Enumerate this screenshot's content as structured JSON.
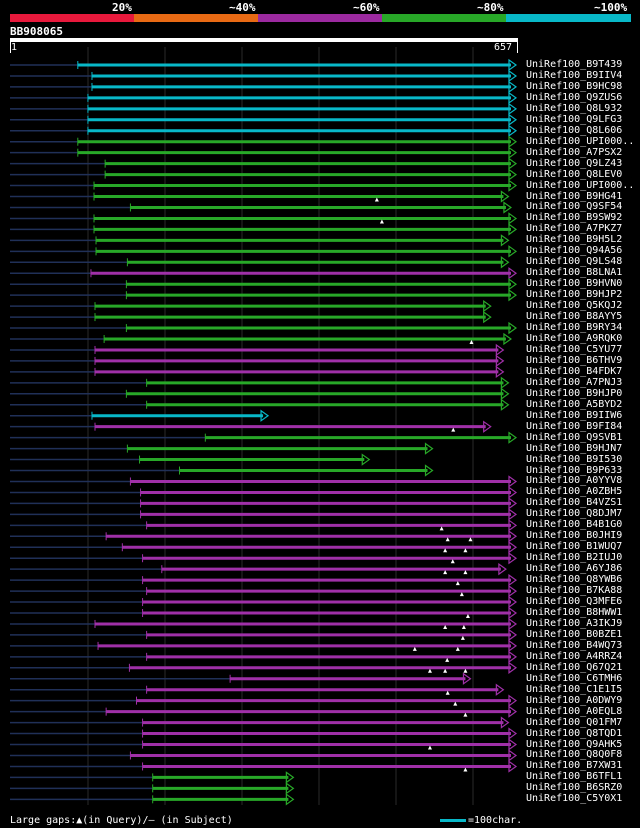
{
  "legend": {
    "labels": [
      "20%",
      "~40%",
      "~60%",
      "~80%",
      "~100%"
    ],
    "colors": [
      "#e8193c",
      "#e86a14",
      "#9c2aa0",
      "#28a828",
      "#08b8c8"
    ]
  },
  "query": {
    "name": "BB908065",
    "start": "1",
    "end": "657",
    "length": 657
  },
  "colors": {
    "cyan": "#08b8c8",
    "green": "#28a828",
    "purple": "#a030a8",
    "tail": "#203058"
  },
  "hits": [
    {
      "name": "UniRef100_B9T439",
      "c": "cyan",
      "s": 0.134,
      "e": 1.0
    },
    {
      "name": "UniRef100_B9IIV4",
      "c": "cyan",
      "s": 0.162,
      "e": 1.0
    },
    {
      "name": "UniRef100_B9HC98",
      "c": "cyan",
      "s": 0.162,
      "e": 1.0
    },
    {
      "name": "UniRef100_Q9ZUS6",
      "c": "cyan",
      "s": 0.154,
      "e": 1.0
    },
    {
      "name": "UniRef100_Q8L932",
      "c": "cyan",
      "s": 0.154,
      "e": 1.0
    },
    {
      "name": "UniRef100_Q9LFG3",
      "c": "cyan",
      "s": 0.154,
      "e": 1.0
    },
    {
      "name": "UniRef100_Q8L606",
      "c": "cyan",
      "s": 0.154,
      "e": 1.0
    },
    {
      "name": "UniRef100_UPI000..",
      "c": "green",
      "s": 0.134,
      "e": 1.0
    },
    {
      "name": "UniRef100_A7PSX2",
      "c": "green",
      "s": 0.134,
      "e": 1.0
    },
    {
      "name": "UniRef100_Q9LZ43",
      "c": "green",
      "s": 0.188,
      "e": 1.0
    },
    {
      "name": "UniRef100_Q8LEV0",
      "c": "green",
      "s": 0.188,
      "e": 1.0
    },
    {
      "name": "UniRef100_UPI000..",
      "c": "green",
      "s": 0.166,
      "e": 1.0
    },
    {
      "name": "UniRef100_B9HG41",
      "c": "green",
      "s": 0.166,
      "e": 0.985,
      "g": [
        0.725
      ]
    },
    {
      "name": "UniRef100_Q9SF54",
      "c": "green",
      "s": 0.238,
      "e": 0.99
    },
    {
      "name": "UniRef100_B9SW92",
      "c": "green",
      "s": 0.166,
      "e": 1.0,
      "g": [
        0.735
      ]
    },
    {
      "name": "UniRef100_A7PKZ7",
      "c": "green",
      "s": 0.166,
      "e": 1.0
    },
    {
      "name": "UniRef100_B9H5L2",
      "c": "green",
      "s": 0.17,
      "e": 0.985
    },
    {
      "name": "UniRef100_Q94A56",
      "c": "green",
      "s": 0.17,
      "e": 1.0
    },
    {
      "name": "UniRef100_Q9LS48",
      "c": "green",
      "s": 0.232,
      "e": 0.985
    },
    {
      "name": "UniRef100_B8LNA1",
      "c": "purple",
      "s": 0.16,
      "e": 1.0
    },
    {
      "name": "UniRef100_B9HVN0",
      "c": "green",
      "s": 0.23,
      "e": 1.0
    },
    {
      "name": "UniRef100_B9HJP2",
      "c": "green",
      "s": 0.23,
      "e": 1.0
    },
    {
      "name": "UniRef100_Q5KQJ2",
      "c": "green",
      "s": 0.168,
      "e": 0.95
    },
    {
      "name": "UniRef100_B8AYY5",
      "c": "green",
      "s": 0.168,
      "e": 0.95
    },
    {
      "name": "UniRef100_B9RY34",
      "c": "green",
      "s": 0.23,
      "e": 1.0
    },
    {
      "name": "UniRef100_A9RQK0",
      "c": "green",
      "s": 0.186,
      "e": 0.99,
      "g": [
        0.912
      ]
    },
    {
      "name": "UniRef100_C5YU77",
      "c": "purple",
      "s": 0.168,
      "e": 0.975
    },
    {
      "name": "UniRef100_B6THV9",
      "c": "purple",
      "s": 0.168,
      "e": 0.975
    },
    {
      "name": "UniRef100_B4FDK7",
      "c": "purple",
      "s": 0.168,
      "e": 0.975
    },
    {
      "name": "UniRef100_A7PNJ3",
      "c": "green",
      "s": 0.27,
      "e": 0.985
    },
    {
      "name": "UniRef100_B9HJP0",
      "c": "green",
      "s": 0.23,
      "e": 0.985
    },
    {
      "name": "UniRef100_A5BYD2",
      "c": "green",
      "s": 0.27,
      "e": 0.985
    },
    {
      "name": "UniRef100_B9IIW6",
      "c": "cyan",
      "s": 0.162,
      "e": 0.51
    },
    {
      "name": "UniRef100_B9FI84",
      "c": "purple",
      "s": 0.168,
      "e": 0.95,
      "g": [
        0.876
      ]
    },
    {
      "name": "UniRef100_Q9SVB1",
      "c": "green",
      "s": 0.386,
      "e": 1.0
    },
    {
      "name": "UniRef100_B9HJN7",
      "c": "green",
      "s": 0.232,
      "e": 0.835
    },
    {
      "name": "UniRef100_B9I530",
      "c": "green",
      "s": 0.256,
      "e": 0.71
    },
    {
      "name": "UniRef100_B9P633",
      "c": "green",
      "s": 0.335,
      "e": 0.835
    },
    {
      "name": "UniRef100_A0YYV8",
      "c": "purple",
      "s": 0.238,
      "e": 1.0
    },
    {
      "name": "UniRef100_A0ZBH5",
      "c": "purple",
      "s": 0.258,
      "e": 1.0
    },
    {
      "name": "UniRef100_B4VZS1",
      "c": "purple",
      "s": 0.258,
      "e": 1.0
    },
    {
      "name": "UniRef100_Q8DJM7",
      "c": "purple",
      "s": 0.258,
      "e": 1.0
    },
    {
      "name": "UniRef100_B4B1G0",
      "c": "purple",
      "s": 0.27,
      "e": 1.0,
      "g": [
        0.853
      ]
    },
    {
      "name": "UniRef100_B0JHI9",
      "c": "purple",
      "s": 0.19,
      "e": 1.0,
      "g": [
        0.865,
        0.91
      ]
    },
    {
      "name": "UniRef100_B1WUQ7",
      "c": "purple",
      "s": 0.222,
      "e": 1.0,
      "g": [
        0.86,
        0.9
      ]
    },
    {
      "name": "UniRef100_B2IUJ0",
      "c": "purple",
      "s": 0.262,
      "e": 1.0,
      "g": [
        0.875
      ]
    },
    {
      "name": "UniRef100_A6YJ86",
      "c": "purple",
      "s": 0.3,
      "e": 0.98,
      "g": [
        0.86,
        0.9
      ]
    },
    {
      "name": "UniRef100_Q8YWB6",
      "c": "purple",
      "s": 0.262,
      "e": 1.0,
      "g": [
        0.885
      ]
    },
    {
      "name": "UniRef100_B7KA88",
      "c": "purple",
      "s": 0.27,
      "e": 1.0,
      "g": [
        0.893
      ]
    },
    {
      "name": "UniRef100_Q3MFE6",
      "c": "purple",
      "s": 0.262,
      "e": 1.0
    },
    {
      "name": "UniRef100_B8HWW1",
      "c": "purple",
      "s": 0.262,
      "e": 1.0,
      "g": [
        0.905
      ]
    },
    {
      "name": "UniRef100_A3IKJ9",
      "c": "purple",
      "s": 0.168,
      "e": 1.0,
      "g": [
        0.86,
        0.897
      ]
    },
    {
      "name": "UniRef100_B0BZE1",
      "c": "purple",
      "s": 0.27,
      "e": 1.0,
      "g": [
        0.895
      ]
    },
    {
      "name": "UniRef100_B4WQ73",
      "c": "purple",
      "s": 0.174,
      "e": 1.0,
      "g": [
        0.8,
        0.885
      ]
    },
    {
      "name": "UniRef100_A4RRZ4",
      "c": "purple",
      "s": 0.27,
      "e": 1.0,
      "g": [
        0.864
      ]
    },
    {
      "name": "UniRef100_Q67Q21",
      "c": "purple",
      "s": 0.236,
      "e": 1.0,
      "g": [
        0.83,
        0.86,
        0.9
      ]
    },
    {
      "name": "UniRef100_C6TMH6",
      "c": "purple",
      "s": 0.435,
      "e": 0.91
    },
    {
      "name": "UniRef100_C1E1I5",
      "c": "purple",
      "s": 0.27,
      "e": 0.975,
      "g": [
        0.865
      ]
    },
    {
      "name": "UniRef100_A0DWY9",
      "c": "purple",
      "s": 0.25,
      "e": 1.0,
      "g": [
        0.88
      ]
    },
    {
      "name": "UniRef100_A0EQL8",
      "c": "purple",
      "s": 0.19,
      "e": 1.0,
      "g": [
        0.9
      ]
    },
    {
      "name": "UniRef100_Q01FM7",
      "c": "purple",
      "s": 0.262,
      "e": 0.985
    },
    {
      "name": "UniRef100_Q8TQD1",
      "c": "purple",
      "s": 0.262,
      "e": 1.0
    },
    {
      "name": "UniRef100_Q9AHK5",
      "c": "purple",
      "s": 0.262,
      "e": 1.0,
      "g": [
        0.83
      ]
    },
    {
      "name": "UniRef100_Q8Q0F8",
      "c": "purple",
      "s": 0.238,
      "e": 1.0
    },
    {
      "name": "UniRef100_B7XW31",
      "c": "purple",
      "s": 0.262,
      "e": 1.0,
      "g": [
        0.9
      ]
    },
    {
      "name": "UniRef100_B6TFL1",
      "c": "green",
      "s": 0.282,
      "e": 0.56
    },
    {
      "name": "UniRef100_B6SRZ0",
      "c": "green",
      "s": 0.282,
      "e": 0.56
    },
    {
      "name": "UniRef100_C5Y0X1",
      "c": "green",
      "s": 0.282,
      "e": 0.56
    }
  ],
  "footer": {
    "gaps_text": "Large gaps:▲(in Query)/— (in Subject)",
    "scale_text": "=100char."
  }
}
